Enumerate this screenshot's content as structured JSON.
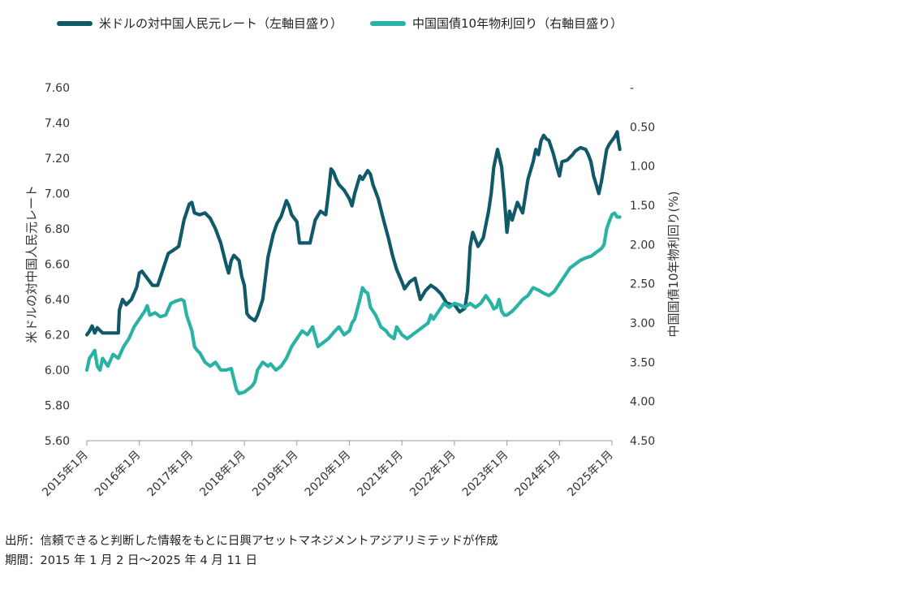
{
  "chart_data": {
    "type": "line",
    "title": "",
    "legend_position": "top-left",
    "grid": false,
    "x_labels": [
      "2015年1月",
      "2016年1月",
      "2017年1月",
      "2018年1月",
      "2019年1月",
      "2020年1月",
      "2021年1月",
      "2022年1月",
      "2023年1月",
      "2024年1月",
      "2025年1月"
    ],
    "left_axis": {
      "label": "米ドルの対中国人民元レート",
      "range": [
        5.6,
        7.6
      ],
      "ticks": [
        "5.60",
        "5.80",
        "6.00",
        "6.20",
        "6.40",
        "6.60",
        "6.80",
        "7.00",
        "7.20",
        "7.40",
        "7.60"
      ]
    },
    "right_axis": {
      "label": "中国国債10年物利回り(%)",
      "range": [
        0,
        4.5
      ],
      "inverted": true,
      "ticks": [
        "-",
        "0.50",
        "1.00",
        "1.50",
        "2.00",
        "2.50",
        "3.00",
        "3.50",
        "4.00",
        "4.50"
      ]
    },
    "series": [
      {
        "name": "米ドルの対中国人民元レート（左軸目盛り）",
        "axis": "left",
        "color": "#0f5968",
        "points": [
          [
            2015.0,
            6.2
          ],
          [
            2015.05,
            6.22
          ],
          [
            2015.1,
            6.25
          ],
          [
            2015.15,
            6.21
          ],
          [
            2015.2,
            6.24
          ],
          [
            2015.3,
            6.21
          ],
          [
            2015.45,
            6.21
          ],
          [
            2015.6,
            6.21
          ],
          [
            2015.62,
            6.34
          ],
          [
            2015.68,
            6.4
          ],
          [
            2015.75,
            6.37
          ],
          [
            2015.85,
            6.4
          ],
          [
            2015.95,
            6.47
          ],
          [
            2016.0,
            6.55
          ],
          [
            2016.05,
            6.56
          ],
          [
            2016.15,
            6.52
          ],
          [
            2016.25,
            6.48
          ],
          [
            2016.35,
            6.48
          ],
          [
            2016.45,
            6.57
          ],
          [
            2016.55,
            6.66
          ],
          [
            2016.65,
            6.68
          ],
          [
            2016.75,
            6.7
          ],
          [
            2016.85,
            6.85
          ],
          [
            2016.95,
            6.94
          ],
          [
            2017.0,
            6.95
          ],
          [
            2017.05,
            6.89
          ],
          [
            2017.15,
            6.88
          ],
          [
            2017.25,
            6.89
          ],
          [
            2017.35,
            6.86
          ],
          [
            2017.45,
            6.8
          ],
          [
            2017.55,
            6.72
          ],
          [
            2017.65,
            6.6
          ],
          [
            2017.7,
            6.55
          ],
          [
            2017.75,
            6.62
          ],
          [
            2017.8,
            6.65
          ],
          [
            2017.9,
            6.62
          ],
          [
            2017.95,
            6.53
          ],
          [
            2018.0,
            6.48
          ],
          [
            2018.05,
            6.32
          ],
          [
            2018.1,
            6.3
          ],
          [
            2018.2,
            6.28
          ],
          [
            2018.25,
            6.31
          ],
          [
            2018.35,
            6.4
          ],
          [
            2018.45,
            6.64
          ],
          [
            2018.55,
            6.77
          ],
          [
            2018.62,
            6.83
          ],
          [
            2018.7,
            6.87
          ],
          [
            2018.8,
            6.96
          ],
          [
            2018.85,
            6.93
          ],
          [
            2018.9,
            6.88
          ],
          [
            2019.0,
            6.84
          ],
          [
            2019.05,
            6.72
          ],
          [
            2019.15,
            6.72
          ],
          [
            2019.25,
            6.72
          ],
          [
            2019.35,
            6.85
          ],
          [
            2019.45,
            6.9
          ],
          [
            2019.55,
            6.88
          ],
          [
            2019.6,
            7.0
          ],
          [
            2019.65,
            7.14
          ],
          [
            2019.7,
            7.12
          ],
          [
            2019.75,
            7.08
          ],
          [
            2019.8,
            7.05
          ],
          [
            2019.9,
            7.02
          ],
          [
            2020.0,
            6.97
          ],
          [
            2020.05,
            6.93
          ],
          [
            2020.1,
            7.0
          ],
          [
            2020.15,
            7.05
          ],
          [
            2020.2,
            7.1
          ],
          [
            2020.25,
            7.08
          ],
          [
            2020.35,
            7.13
          ],
          [
            2020.4,
            7.11
          ],
          [
            2020.45,
            7.05
          ],
          [
            2020.55,
            6.97
          ],
          [
            2020.65,
            6.85
          ],
          [
            2020.75,
            6.74
          ],
          [
            2020.82,
            6.65
          ],
          [
            2020.9,
            6.57
          ],
          [
            2021.0,
            6.5
          ],
          [
            2021.05,
            6.46
          ],
          [
            2021.15,
            6.5
          ],
          [
            2021.25,
            6.52
          ],
          [
            2021.35,
            6.4
          ],
          [
            2021.45,
            6.45
          ],
          [
            2021.55,
            6.48
          ],
          [
            2021.65,
            6.46
          ],
          [
            2021.75,
            6.43
          ],
          [
            2021.85,
            6.38
          ],
          [
            2021.95,
            6.37
          ],
          [
            2022.0,
            6.37
          ],
          [
            2022.1,
            6.33
          ],
          [
            2022.2,
            6.35
          ],
          [
            2022.25,
            6.45
          ],
          [
            2022.3,
            6.7
          ],
          [
            2022.35,
            6.78
          ],
          [
            2022.45,
            6.7
          ],
          [
            2022.55,
            6.75
          ],
          [
            2022.65,
            6.9
          ],
          [
            2022.7,
            7.0
          ],
          [
            2022.75,
            7.15
          ],
          [
            2022.82,
            7.25
          ],
          [
            2022.9,
            7.15
          ],
          [
            2022.95,
            6.98
          ],
          [
            2023.0,
            6.78
          ],
          [
            2023.05,
            6.9
          ],
          [
            2023.1,
            6.85
          ],
          [
            2023.15,
            6.9
          ],
          [
            2023.2,
            6.95
          ],
          [
            2023.3,
            6.89
          ],
          [
            2023.4,
            7.08
          ],
          [
            2023.5,
            7.18
          ],
          [
            2023.55,
            7.25
          ],
          [
            2023.6,
            7.22
          ],
          [
            2023.65,
            7.3
          ],
          [
            2023.7,
            7.33
          ],
          [
            2023.75,
            7.31
          ],
          [
            2023.8,
            7.3
          ],
          [
            2023.88,
            7.23
          ],
          [
            2023.95,
            7.15
          ],
          [
            2024.0,
            7.1
          ],
          [
            2024.05,
            7.18
          ],
          [
            2024.15,
            7.19
          ],
          [
            2024.25,
            7.22
          ],
          [
            2024.3,
            7.24
          ],
          [
            2024.4,
            7.26
          ],
          [
            2024.5,
            7.25
          ],
          [
            2024.55,
            7.22
          ],
          [
            2024.6,
            7.18
          ],
          [
            2024.65,
            7.1
          ],
          [
            2024.72,
            7.03
          ],
          [
            2024.75,
            7.0
          ],
          [
            2024.8,
            7.07
          ],
          [
            2024.85,
            7.16
          ],
          [
            2024.9,
            7.25
          ],
          [
            2024.95,
            7.28
          ],
          [
            2025.0,
            7.3
          ],
          [
            2025.05,
            7.32
          ],
          [
            2025.1,
            7.35
          ],
          [
            2025.12,
            7.3
          ],
          [
            2025.15,
            7.25
          ]
        ]
      },
      {
        "name": "中国国債10年物利回り（右軸目盛り）",
        "axis": "right",
        "color": "#2ab3a3",
        "points": [
          [
            2015.0,
            3.6
          ],
          [
            2015.05,
            3.45
          ],
          [
            2015.1,
            3.4
          ],
          [
            2015.15,
            3.35
          ],
          [
            2015.2,
            3.55
          ],
          [
            2015.25,
            3.6
          ],
          [
            2015.3,
            3.45
          ],
          [
            2015.4,
            3.55
          ],
          [
            2015.5,
            3.4
          ],
          [
            2015.6,
            3.45
          ],
          [
            2015.7,
            3.3
          ],
          [
            2015.8,
            3.2
          ],
          [
            2015.9,
            3.05
          ],
          [
            2016.0,
            2.95
          ],
          [
            2016.1,
            2.85
          ],
          [
            2016.15,
            2.78
          ],
          [
            2016.2,
            2.9
          ],
          [
            2016.3,
            2.87
          ],
          [
            2016.4,
            2.92
          ],
          [
            2016.5,
            2.9
          ],
          [
            2016.6,
            2.75
          ],
          [
            2016.7,
            2.72
          ],
          [
            2016.8,
            2.7
          ],
          [
            2016.85,
            2.72
          ],
          [
            2016.9,
            2.9
          ],
          [
            2017.0,
            3.1
          ],
          [
            2017.05,
            3.3
          ],
          [
            2017.1,
            3.35
          ],
          [
            2017.15,
            3.38
          ],
          [
            2017.25,
            3.5
          ],
          [
            2017.35,
            3.55
          ],
          [
            2017.45,
            3.5
          ],
          [
            2017.55,
            3.6
          ],
          [
            2017.65,
            3.6
          ],
          [
            2017.75,
            3.58
          ],
          [
            2017.85,
            3.85
          ],
          [
            2017.9,
            3.9
          ],
          [
            2018.0,
            3.88
          ],
          [
            2018.1,
            3.83
          ],
          [
            2018.15,
            3.8
          ],
          [
            2018.2,
            3.75
          ],
          [
            2018.25,
            3.6
          ],
          [
            2018.35,
            3.5
          ],
          [
            2018.45,
            3.55
          ],
          [
            2018.5,
            3.52
          ],
          [
            2018.6,
            3.6
          ],
          [
            2018.7,
            3.55
          ],
          [
            2018.8,
            3.45
          ],
          [
            2018.9,
            3.3
          ],
          [
            2019.0,
            3.2
          ],
          [
            2019.05,
            3.15
          ],
          [
            2019.1,
            3.1
          ],
          [
            2019.2,
            3.15
          ],
          [
            2019.3,
            3.05
          ],
          [
            2019.4,
            3.3
          ],
          [
            2019.5,
            3.25
          ],
          [
            2019.6,
            3.2
          ],
          [
            2019.7,
            3.12
          ],
          [
            2019.8,
            3.05
          ],
          [
            2019.9,
            3.15
          ],
          [
            2020.0,
            3.1
          ],
          [
            2020.05,
            3.0
          ],
          [
            2020.1,
            2.95
          ],
          [
            2020.2,
            2.7
          ],
          [
            2020.25,
            2.55
          ],
          [
            2020.3,
            2.6
          ],
          [
            2020.35,
            2.62
          ],
          [
            2020.4,
            2.8
          ],
          [
            2020.5,
            2.9
          ],
          [
            2020.6,
            3.05
          ],
          [
            2020.7,
            3.1
          ],
          [
            2020.75,
            3.15
          ],
          [
            2020.85,
            3.2
          ],
          [
            2020.9,
            3.05
          ],
          [
            2021.0,
            3.15
          ],
          [
            2021.1,
            3.2
          ],
          [
            2021.2,
            3.15
          ],
          [
            2021.3,
            3.1
          ],
          [
            2021.4,
            3.05
          ],
          [
            2021.5,
            3.0
          ],
          [
            2021.55,
            2.9
          ],
          [
            2021.6,
            2.95
          ],
          [
            2021.7,
            2.85
          ],
          [
            2021.8,
            2.75
          ],
          [
            2021.9,
            2.8
          ],
          [
            2022.0,
            2.75
          ],
          [
            2022.1,
            2.77
          ],
          [
            2022.2,
            2.8
          ],
          [
            2022.3,
            2.75
          ],
          [
            2022.4,
            2.8
          ],
          [
            2022.5,
            2.75
          ],
          [
            2022.6,
            2.65
          ],
          [
            2022.65,
            2.7
          ],
          [
            2022.7,
            2.75
          ],
          [
            2022.75,
            2.82
          ],
          [
            2022.8,
            2.8
          ],
          [
            2022.85,
            2.7
          ],
          [
            2022.9,
            2.85
          ],
          [
            2022.95,
            2.9
          ],
          [
            2023.0,
            2.9
          ],
          [
            2023.1,
            2.85
          ],
          [
            2023.2,
            2.78
          ],
          [
            2023.3,
            2.7
          ],
          [
            2023.4,
            2.65
          ],
          [
            2023.45,
            2.6
          ],
          [
            2023.5,
            2.55
          ],
          [
            2023.6,
            2.58
          ],
          [
            2023.7,
            2.62
          ],
          [
            2023.8,
            2.65
          ],
          [
            2023.9,
            2.6
          ],
          [
            2024.0,
            2.5
          ],
          [
            2024.1,
            2.4
          ],
          [
            2024.2,
            2.3
          ],
          [
            2024.3,
            2.25
          ],
          [
            2024.4,
            2.2
          ],
          [
            2024.5,
            2.17
          ],
          [
            2024.6,
            2.15
          ],
          [
            2024.7,
            2.1
          ],
          [
            2024.8,
            2.05
          ],
          [
            2024.85,
            2.0
          ],
          [
            2024.9,
            1.8
          ],
          [
            2024.95,
            1.7
          ],
          [
            2025.0,
            1.62
          ],
          [
            2025.05,
            1.6
          ],
          [
            2025.1,
            1.65
          ],
          [
            2025.15,
            1.65
          ]
        ]
      }
    ]
  },
  "legend": {
    "item1_label": "米ドルの対中国人民元レート（左軸目盛り）",
    "item2_label": "中国国債10年物利回り（右軸目盛り）"
  },
  "notes": {
    "source": "出所：信頼できると判断した情報をもとに日興アセットマネジメントアジアリミテッドが作成",
    "period": "期間：2015 年 1 月 2 日～2025 年 4 月 11 日"
  }
}
